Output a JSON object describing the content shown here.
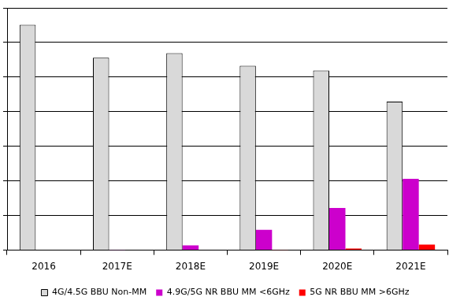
{
  "chart_data": {
    "type": "bar",
    "categories": [
      "2016",
      "2017E",
      "2018E",
      "2019E",
      "2020E",
      "2021E"
    ],
    "series": [
      {
        "name": "4G/4.5G BBU Non-MM",
        "color": "#d9d9d9",
        "values": [
          6.51,
          5.56,
          5.69,
          5.33,
          5.19,
          4.29
        ]
      },
      {
        "name": "4.9G/5G NR BBU MM <6GHz",
        "color": "#cc00cc",
        "values": [
          0,
          0.01,
          0.14,
          0.59,
          1.22,
          2.06
        ]
      },
      {
        "name": "5G NR BBU MM >6GHz",
        "color": "#ff0000",
        "values": [
          0,
          0,
          0,
          0.01,
          0.05,
          0.16
        ]
      }
    ],
    "ylim": [
      0,
      7
    ],
    "yticks": [
      0,
      1,
      2,
      3,
      4,
      5,
      6,
      7
    ],
    "grid": true,
    "legend": "bottom",
    "tick_labels": "x"
  }
}
